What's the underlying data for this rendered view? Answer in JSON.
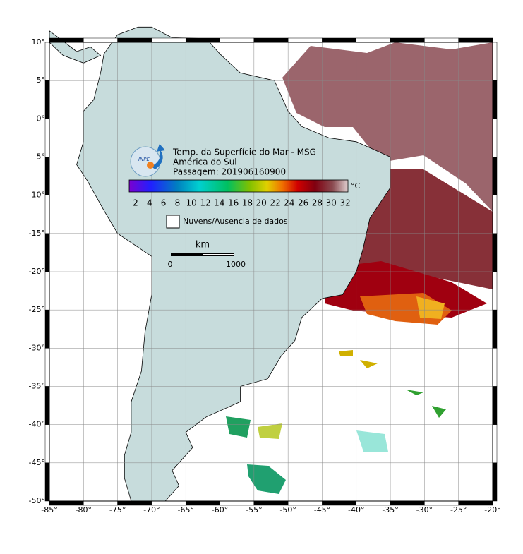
{
  "title": {
    "line1": "Temp. da Superfície do Mar - MSG",
    "line2": "América do Sul",
    "line3": "Passagem: 201906160900"
  },
  "logo": "INPE",
  "colorbar": {
    "unit": "°C",
    "labels": [
      "2",
      "4",
      "6",
      "8",
      "10",
      "12",
      "14",
      "16",
      "18",
      "20",
      "22",
      "24",
      "26",
      "28",
      "30",
      "32"
    ]
  },
  "legend": "Nuvens/Ausencia de dados",
  "scale": {
    "unit": "km",
    "start": "0",
    "end": "1000"
  },
  "lon_ticks": [
    "-85°",
    "-80°",
    "-75°",
    "-70°",
    "-65°",
    "-60°",
    "-55°",
    "-50°",
    "-45°",
    "-40°",
    "-35°",
    "-30°",
    "-25°",
    "-20°"
  ],
  "lat_ticks": [
    "10°",
    "5°",
    "0°",
    "-5°",
    "-10°",
    "-15°",
    "-20°",
    "-25°",
    "-30°",
    "-35°",
    "-40°",
    "-45°",
    "-50°"
  ]
}
